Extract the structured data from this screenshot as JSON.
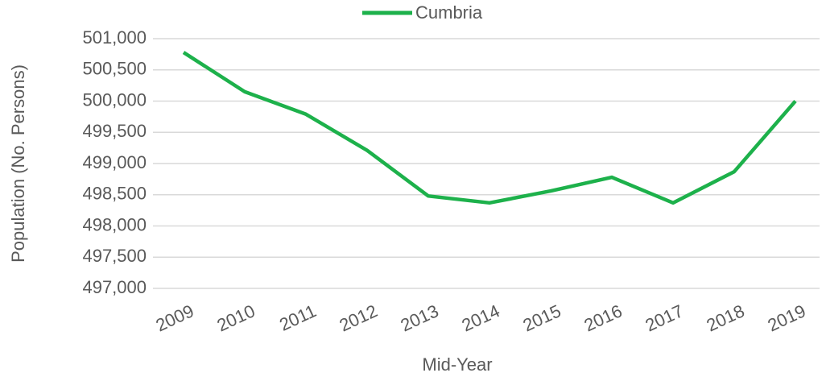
{
  "chart_data": {
    "type": "line",
    "categories": [
      "2009",
      "2010",
      "2011",
      "2012",
      "2013",
      "2014",
      "2015",
      "2016",
      "2017",
      "2018",
      "2019"
    ],
    "series": [
      {
        "name": "Cumbria",
        "color": "#1db14b",
        "values": [
          500780,
          500150,
          499790,
          499210,
          498480,
          498370,
          498560,
          498780,
          498370,
          498870,
          500000
        ]
      }
    ],
    "ylim": [
      497000,
      501000
    ],
    "yticks": [
      {
        "value": 497000,
        "label": "497,000"
      },
      {
        "value": 497500,
        "label": "497,500"
      },
      {
        "value": 498000,
        "label": "498,000"
      },
      {
        "value": 498500,
        "label": "498,500"
      },
      {
        "value": 499000,
        "label": "499,000"
      },
      {
        "value": 499500,
        "label": "499,500"
      },
      {
        "value": 500000,
        "label": "500,000"
      },
      {
        "value": 500500,
        "label": "500,500"
      },
      {
        "value": 501000,
        "label": "501,000"
      }
    ],
    "xlabel": "Mid-Year",
    "ylabel": "Population (No. Persons)",
    "grid": true,
    "legend": "top"
  }
}
